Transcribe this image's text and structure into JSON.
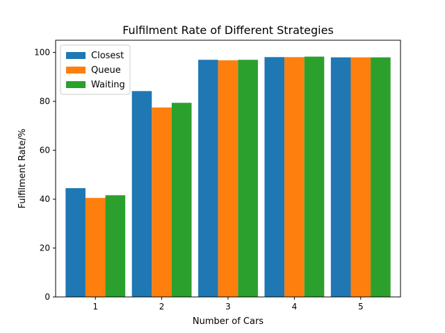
{
  "chart_data": {
    "type": "bar",
    "title": "Fulfilment Rate of Different Strategies",
    "xlabel": "Number of Cars",
    "ylabel": "Fulfilment Rate/%",
    "categories": [
      "1",
      "2",
      "3",
      "4",
      "5"
    ],
    "ylim": [
      0,
      100
    ],
    "yticks": [
      0,
      20,
      40,
      60,
      80,
      100
    ],
    "grid": false,
    "legend_position": "top-left",
    "series": [
      {
        "name": "Closest",
        "color": "#1f77b4",
        "values": [
          44.5,
          84.2,
          97.0,
          98.1,
          98.0
        ]
      },
      {
        "name": "Queue",
        "color": "#ff7f0e",
        "values": [
          40.5,
          77.5,
          96.8,
          98.1,
          98.0
        ]
      },
      {
        "name": "Waiting",
        "color": "#2ca02c",
        "values": [
          41.6,
          79.4,
          97.0,
          98.3,
          98.0
        ]
      }
    ]
  }
}
